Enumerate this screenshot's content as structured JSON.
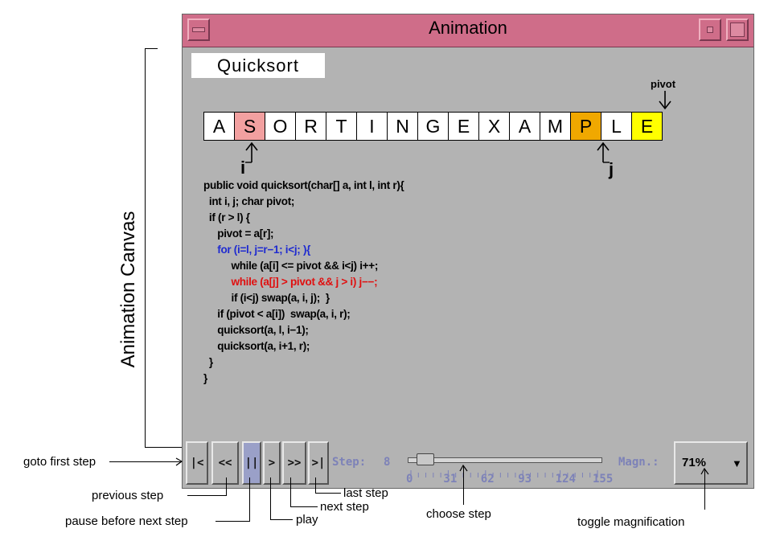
{
  "window": {
    "title": "Animation"
  },
  "animation": {
    "label": "Quicksort",
    "array": [
      "A",
      "S",
      "O",
      "R",
      "T",
      "I",
      "N",
      "G",
      "E",
      "X",
      "A",
      "M",
      "P",
      "L",
      "E"
    ],
    "highlight_colors": {
      "i": "#f2a0a0",
      "j": "#f0a800",
      "pivot": "#ffff00"
    },
    "pivot_label": "pivot",
    "i_label": "i",
    "j_label": "j",
    "code_lines": [
      {
        "text": "public void quicksort(char[] a, int l, int r){",
        "color": "#000000"
      },
      {
        "text": "  int i, j; char pivot;",
        "color": "#000000"
      },
      {
        "text": "  if (r > l) {",
        "color": "#000000"
      },
      {
        "text": "     pivot = a[r];",
        "color": "#000000"
      },
      {
        "text": "     for (i=l, j=r−1; i<j; ){",
        "color": "#1f2bd0"
      },
      {
        "text": "          while (a[i] <= pivot && i<j) i++;",
        "color": "#000000"
      },
      {
        "text": "          while (a[j] > pivot && j > i) j−−;",
        "color": "#e01010"
      },
      {
        "text": "          if (i<j) swap(a, i, j);  }",
        "color": "#000000"
      },
      {
        "text": "     if (pivot < a[i])  swap(a, i, r);",
        "color": "#000000"
      },
      {
        "text": "     quicksort(a, l, i−1);",
        "color": "#000000"
      },
      {
        "text": "     quicksort(a, i+1, r);",
        "color": "#000000"
      },
      {
        "text": "  }",
        "color": "#000000"
      },
      {
        "text": "}",
        "color": "#000000"
      }
    ]
  },
  "controls": {
    "first_label": "|<",
    "prev_label": "<<",
    "pause_label": "||",
    "play_label": ">",
    "next_label": ">>",
    "last_label": ">|",
    "step_label": "Step:",
    "step_value": "8",
    "slider_value": 8,
    "slider_max": 155,
    "ticks": [
      "0",
      "31",
      "62",
      "93",
      "124",
      "155"
    ],
    "magn_label": "Magn.:",
    "magn_value": "71%"
  },
  "annotations": {
    "canvas": "Animation Canvas",
    "first": "goto first step",
    "prev": "previous step",
    "pause": "pause before next step",
    "play": "play",
    "next": "next step",
    "last": "last step",
    "choose": "choose step",
    "magn": "toggle magnification"
  }
}
